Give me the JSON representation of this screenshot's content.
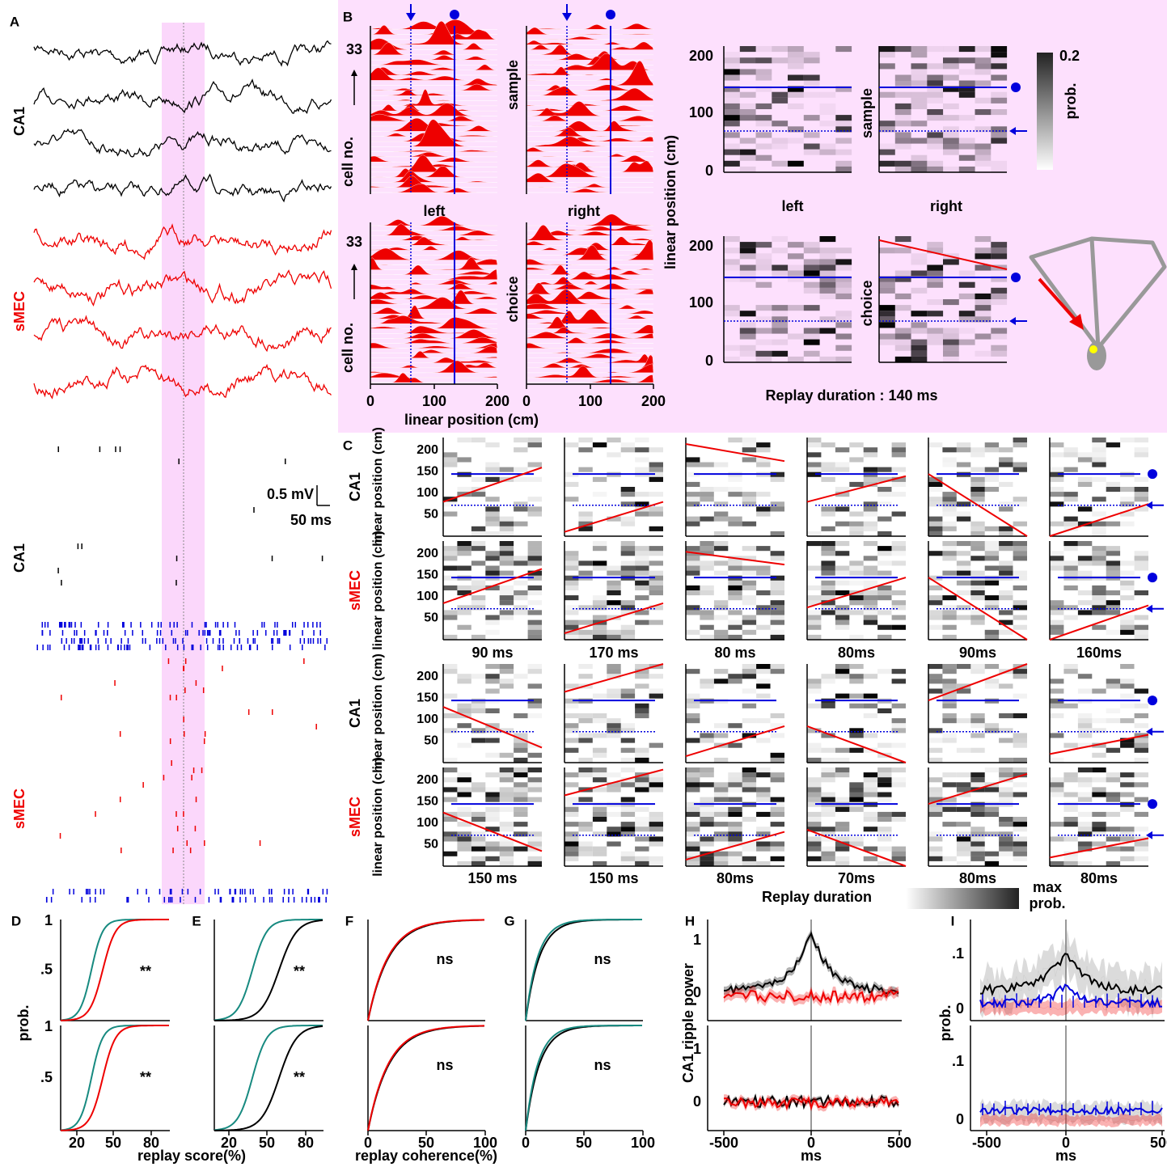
{
  "panel_labels": [
    "A",
    "B",
    "C",
    "D",
    "E",
    "F",
    "G",
    "H",
    "I"
  ],
  "panel_a": {
    "regions": [
      "CA1",
      "sMEC"
    ],
    "scale_voltage": "0.5 mV",
    "scale_time": "50 ms"
  },
  "panel_b": {
    "cell_top": "33",
    "cell_axis": "cell no.",
    "conditions": [
      "sample",
      "choice"
    ],
    "arms": [
      "left",
      "right"
    ],
    "position_ticks": [
      "0",
      "100",
      "200"
    ],
    "position_label": "linear position (cm)",
    "decoded_ticks": [
      "200",
      "100",
      "0"
    ],
    "colorbar_max": "0.2",
    "colorbar_label": "prob.",
    "replay_duration": "Replay duration : 140 ms"
  },
  "panel_c": {
    "regions": [
      "CA1",
      "sMEC"
    ],
    "position_label": "linear position (cm)",
    "position_ticks": [
      "200",
      "150",
      "100",
      "50"
    ],
    "durations": [
      [
        "90 ms",
        "170 ms",
        "80 ms",
        "80ms",
        "90ms",
        "160ms"
      ],
      [
        "150 ms",
        "150 ms",
        "80ms",
        "70ms",
        "80ms",
        "80ms"
      ]
    ],
    "duration_label": "Replay duration",
    "colorbar_label": [
      "max",
      "prob."
    ]
  },
  "panel_d_e": {
    "y_ticks": [
      "1",
      ".5"
    ],
    "y_label": "prob.",
    "significance": "**",
    "x_ticks": [
      "20",
      "50",
      "80"
    ],
    "x_label": "replay score(%)"
  },
  "panel_f_g": {
    "significance": "ns",
    "x_ticks": [
      "0",
      "50",
      "100"
    ],
    "x_label": "replay coherence(%)"
  },
  "panel_h": {
    "y_ticks": [
      "1",
      "0"
    ],
    "y_label": "CA1 ripple power",
    "x_ticks": [
      "-500",
      "0",
      "500"
    ],
    "x_label": "ms"
  },
  "panel_i": {
    "y_ticks": [
      ".1",
      "0"
    ],
    "y_label": "prob.",
    "x_ticks": [
      "-500",
      "0",
      "500"
    ],
    "x_label": "ms"
  }
}
